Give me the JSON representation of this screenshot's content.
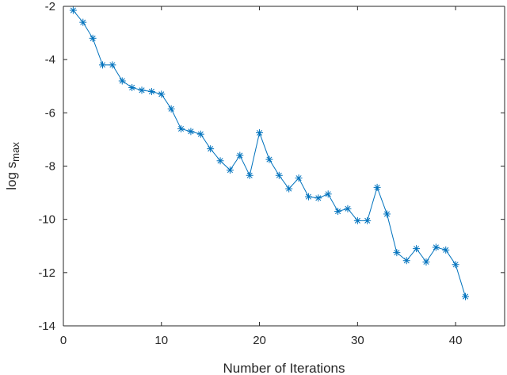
{
  "chart_data": {
    "type": "line",
    "xlabel": "Number of Iterations",
    "ylabel": "log s",
    "ylabel_subscript": "max",
    "xlim": [
      0,
      45
    ],
    "ylim": [
      -14,
      -2
    ],
    "xticks": [
      0,
      10,
      20,
      30,
      40
    ],
    "xtick_labels": [
      "0",
      "10",
      "20",
      "30",
      "40"
    ],
    "yticks": [
      -14,
      -12,
      -10,
      -8,
      -6,
      -4,
      -2
    ],
    "ytick_labels": [
      "-14",
      "-12",
      "-10",
      "-8",
      "-6",
      "-4",
      "-2"
    ],
    "grid": false,
    "legend": "none",
    "marker": "asterisk",
    "series": [
      {
        "color": "#0072BD",
        "x": [
          1,
          2,
          3,
          4,
          5,
          6,
          7,
          8,
          9,
          10,
          11,
          12,
          13,
          14,
          15,
          16,
          17,
          18,
          19,
          20,
          21,
          22,
          23,
          24,
          25,
          26,
          27,
          28,
          29,
          30,
          31,
          32,
          33,
          34,
          35,
          36,
          37,
          38,
          39,
          40,
          41
        ],
        "y": [
          -2.15,
          -2.6,
          -3.2,
          -4.2,
          -4.2,
          -4.8,
          -5.05,
          -5.15,
          -5.2,
          -5.3,
          -5.85,
          -6.6,
          -6.7,
          -6.8,
          -7.35,
          -7.8,
          -8.15,
          -7.6,
          -8.35,
          -6.75,
          -7.75,
          -8.35,
          -8.85,
          -8.45,
          -9.15,
          -9.2,
          -9.05,
          -9.7,
          -9.6,
          -10.05,
          -10.05,
          -8.8,
          -9.8,
          -11.25,
          -11.55,
          -11.1,
          -11.6,
          -11.05,
          -11.15,
          -11.7,
          -12.9
        ]
      }
    ]
  }
}
